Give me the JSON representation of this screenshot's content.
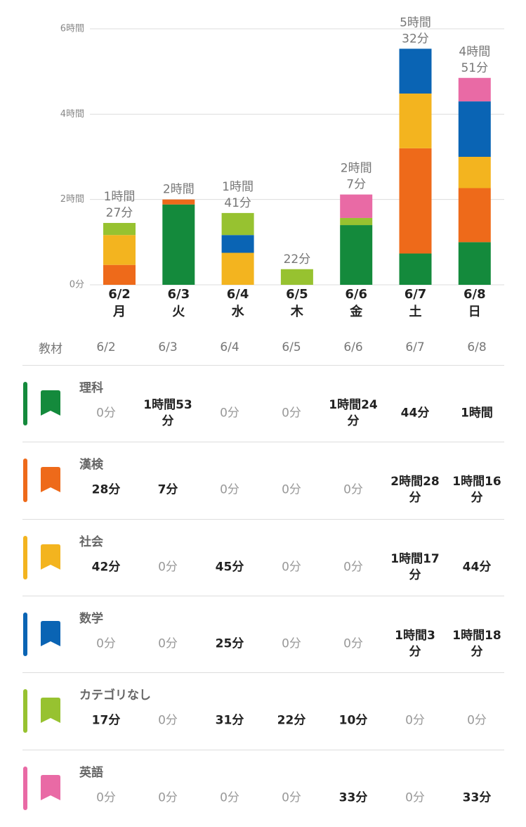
{
  "chart_data": {
    "type": "bar",
    "stacked": true,
    "categories": [
      "6/2",
      "6/3",
      "6/4",
      "6/5",
      "6/6",
      "6/7",
      "6/8"
    ],
    "weekdays": [
      "月",
      "火",
      "水",
      "木",
      "金",
      "土",
      "日"
    ],
    "series": [
      {
        "name": "理科",
        "color": "#148a3c",
        "values": [
          0,
          113,
          0,
          0,
          84,
          44,
          60
        ]
      },
      {
        "name": "漢検",
        "color": "#ee6a1a",
        "values": [
          28,
          7,
          0,
          0,
          0,
          148,
          76
        ]
      },
      {
        "name": "社会",
        "color": "#f3b41f",
        "values": [
          42,
          0,
          45,
          0,
          0,
          77,
          44
        ]
      },
      {
        "name": "数学",
        "color": "#0a64b4",
        "values": [
          0,
          0,
          25,
          0,
          0,
          63,
          78
        ]
      },
      {
        "name": "カテゴリなし",
        "color": "#97c230",
        "values": [
          17,
          0,
          31,
          22,
          10,
          0,
          0
        ]
      },
      {
        "name": "英語",
        "color": "#e96aa5",
        "values": [
          0,
          0,
          0,
          0,
          33,
          0,
          33
        ]
      }
    ],
    "total_labels": [
      [
        "1時間",
        "27分"
      ],
      [
        "2時間"
      ],
      [
        "1時間",
        "41分"
      ],
      [
        "22分"
      ],
      [
        "2時間",
        "7分"
      ],
      [
        "5時間",
        "32分"
      ],
      [
        "4時間",
        "51分"
      ]
    ],
    "ylim": [
      0,
      360
    ],
    "yticks": [
      {
        "value": 0,
        "label": "0分"
      },
      {
        "value": 120,
        "label": "2時間"
      },
      {
        "value": 240,
        "label": "4時間"
      },
      {
        "value": 360,
        "label": "6時間"
      }
    ],
    "grid": true
  },
  "table": {
    "header": [
      "教材",
      "6/2",
      "6/3",
      "6/4",
      "6/5",
      "6/6",
      "6/7",
      "6/8"
    ],
    "rows": [
      {
        "name": "理科",
        "cells": [
          "0分",
          "1時間53分",
          "0分",
          "0分",
          "1時間24分",
          "44分",
          "1時間"
        ]
      },
      {
        "name": "漢検",
        "cells": [
          "28分",
          "7分",
          "0分",
          "0分",
          "0分",
          "2時間28分",
          "1時間16分"
        ]
      },
      {
        "name": "社会",
        "cells": [
          "42分",
          "0分",
          "45分",
          "0分",
          "0分",
          "1時間17分",
          "44分"
        ]
      },
      {
        "name": "数学",
        "cells": [
          "0分",
          "0分",
          "25分",
          "0分",
          "0分",
          "1時間3分",
          "1時間18分"
        ]
      },
      {
        "name": "カテゴリなし",
        "cells": [
          "17分",
          "0分",
          "31分",
          "22分",
          "10分",
          "0分",
          "0分"
        ]
      },
      {
        "name": "英語",
        "cells": [
          "0分",
          "0分",
          "0分",
          "0分",
          "33分",
          "0分",
          "33分"
        ]
      }
    ]
  }
}
